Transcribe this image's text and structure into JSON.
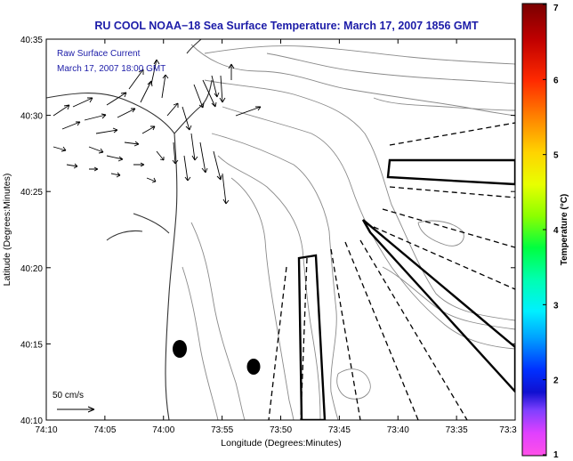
{
  "title": "RU COOL  NOAA−18  Sea Surface Temperature:  March 17, 2007 1856 GMT",
  "legend": {
    "line1": "Raw Surface Current",
    "line2": "March 17, 2007  18:00 GMT",
    "scale_label": "50 cm/s"
  },
  "axes": {
    "xlabel": "Longitude (Degrees:Minutes)",
    "ylabel": "Latitude (Degrees:Minutes)",
    "x_ticks": [
      "74:10",
      "74:05",
      "74:00",
      "73:55",
      "73:50",
      "73:45",
      "73:40",
      "73:35",
      "73:3"
    ],
    "y_ticks": [
      "40:35",
      "40:30",
      "40:25",
      "40:20",
      "40:15",
      "40:10"
    ]
  },
  "colorbar": {
    "label": "Temperature (°C)",
    "ticks": [
      "7",
      "6",
      "5",
      "4",
      "3",
      "2",
      "1"
    ],
    "range": [
      1,
      7
    ]
  },
  "colors": {
    "title": "#1c1ca8",
    "legend": "#1c1ca8",
    "contour": "#777777",
    "coast": "#333333"
  }
}
